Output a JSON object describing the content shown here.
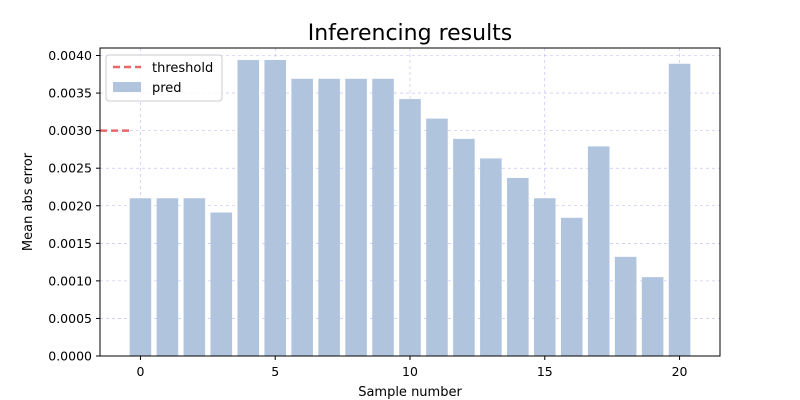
{
  "chart_data": {
    "type": "bar",
    "title": "Inferencing results",
    "xlabel": "Sample number",
    "ylabel": "Mean abs error",
    "x": [
      0,
      1,
      2,
      3,
      4,
      5,
      6,
      7,
      8,
      9,
      10,
      11,
      12,
      13,
      14,
      15,
      16,
      17,
      18,
      19,
      20
    ],
    "values": [
      0.0021,
      0.0021,
      0.0021,
      0.00191,
      0.00394,
      0.00394,
      0.00369,
      0.00369,
      0.00369,
      0.00369,
      0.00342,
      0.00316,
      0.00289,
      0.00263,
      0.00237,
      0.0021,
      0.00184,
      0.00279,
      0.00132,
      0.00105,
      0.00389
    ],
    "xlim": [
      -1.5,
      21.5
    ],
    "ylim": [
      0,
      0.0041
    ],
    "xticks": [
      0,
      5,
      10,
      15,
      20
    ],
    "xtick_labels": [
      "0",
      "5",
      "10",
      "15",
      "20"
    ],
    "yticks": [
      0,
      0.0005,
      0.001,
      0.0015,
      0.002,
      0.0025,
      0.003,
      0.0035,
      0.004
    ],
    "ytick_labels": [
      "0.0000",
      "0.0005",
      "0.0010",
      "0.0015",
      "0.0020",
      "0.0025",
      "0.0030",
      "0.0035",
      "0.0040"
    ],
    "threshold": {
      "name": "threshold",
      "value": 0.003,
      "x_range": [
        -1.5,
        -0.4
      ],
      "color": "#e8676b",
      "style": "dashed"
    },
    "series": [
      {
        "name": "pred",
        "color": "#b0c4de"
      }
    ],
    "legend": {
      "placement": "top-left",
      "entries": [
        "threshold",
        "pred"
      ]
    },
    "grid": true,
    "grid_color": "#b8b8f0"
  }
}
